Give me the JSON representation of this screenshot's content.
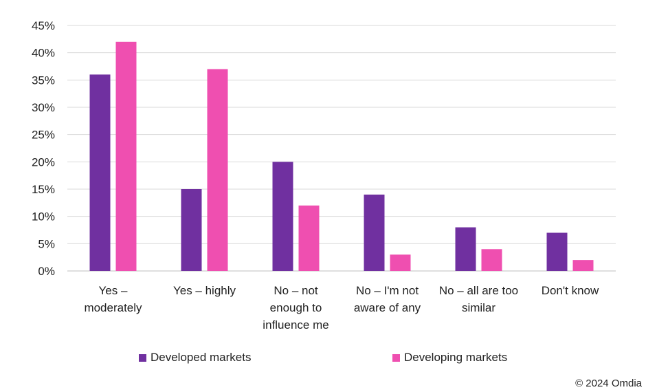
{
  "chart_data": {
    "type": "bar",
    "categories": [
      [
        "Yes –",
        "moderately"
      ],
      [
        "Yes – highly"
      ],
      [
        "No – not",
        "enough to",
        "influence me"
      ],
      [
        "No – I'm not",
        "aware of any"
      ],
      [
        "No – all are too",
        "similar"
      ],
      [
        "Don't know"
      ]
    ],
    "series": [
      {
        "name": "Developed markets",
        "color": "#7030a0",
        "values": [
          36,
          15,
          20,
          14,
          8,
          7
        ]
      },
      {
        "name": "Developing markets",
        "color": "#ef4fb0",
        "values": [
          42,
          37,
          12,
          3,
          4,
          2
        ]
      }
    ],
    "ylim": [
      0,
      45
    ],
    "yticks": [
      "0%",
      "5%",
      "10%",
      "15%",
      "20%",
      "25%",
      "30%",
      "35%",
      "40%",
      "45%"
    ],
    "grid": true,
    "legend_position": "bottom"
  },
  "legend": {
    "developed_label": "Developed markets",
    "developing_label": "Developing markets"
  },
  "footer": {
    "copyright": "© 2024 Omdia"
  }
}
